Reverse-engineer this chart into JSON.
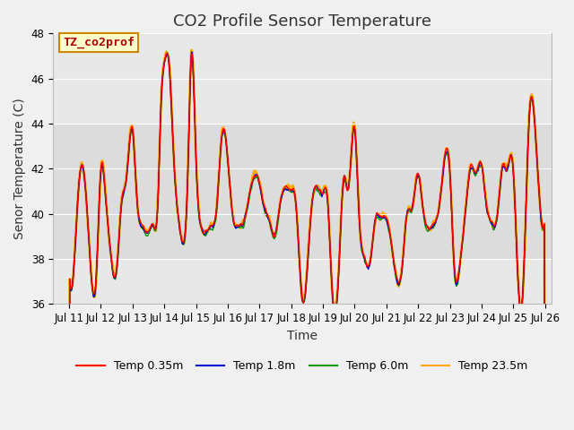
{
  "title": "CO2 Profile Sensor Temperature",
  "xlabel": "Time",
  "ylabel": "Senor Temperature (C)",
  "ylim": [
    36,
    48
  ],
  "yticks": [
    36,
    38,
    40,
    42,
    44,
    46,
    48
  ],
  "xlim_days": [
    10.5,
    26.2
  ],
  "xtick_labels": [
    "Jul 11",
    "Jul 12",
    "Jul 13",
    "Jul 14",
    "Jul 15",
    "Jul 16",
    "Jul 17",
    "Jul 18",
    "Jul 19",
    "Jul 20",
    "Jul 21",
    "Jul 22",
    "Jul 23",
    "Jul 24",
    "Jul 25",
    "Jul 26"
  ],
  "xtick_positions": [
    11,
    12,
    13,
    14,
    15,
    16,
    17,
    18,
    19,
    20,
    21,
    22,
    23,
    24,
    25,
    26
  ],
  "series_colors": [
    "#ff0000",
    "#0000cc",
    "#009900",
    "#ffaa00"
  ],
  "series_labels": [
    "Temp 0.35m",
    "Temp 1.8m",
    "Temp 6.0m",
    "Temp 23.5m"
  ],
  "series_linewidths": [
    1.0,
    1.0,
    1.0,
    2.0
  ],
  "bg_color": "#f0f0f0",
  "plot_bg_color": "#e8e8e8",
  "inner_band_color": "#dcdcdc",
  "legend_box_color": "#ffffcc",
  "legend_box_edge": "#cc8800",
  "annotation_text": "TZ_co2prof",
  "annotation_color": "#aa0000",
  "annotation_bg": "#ffffcc",
  "annotation_border": "#cc8800",
  "title_fontsize": 13,
  "label_fontsize": 10,
  "tick_fontsize": 8.5,
  "legend_fontsize": 9,
  "shaded_band_ymin": 38,
  "shaded_band_ymax": 44,
  "grid_color": "#ffffff"
}
